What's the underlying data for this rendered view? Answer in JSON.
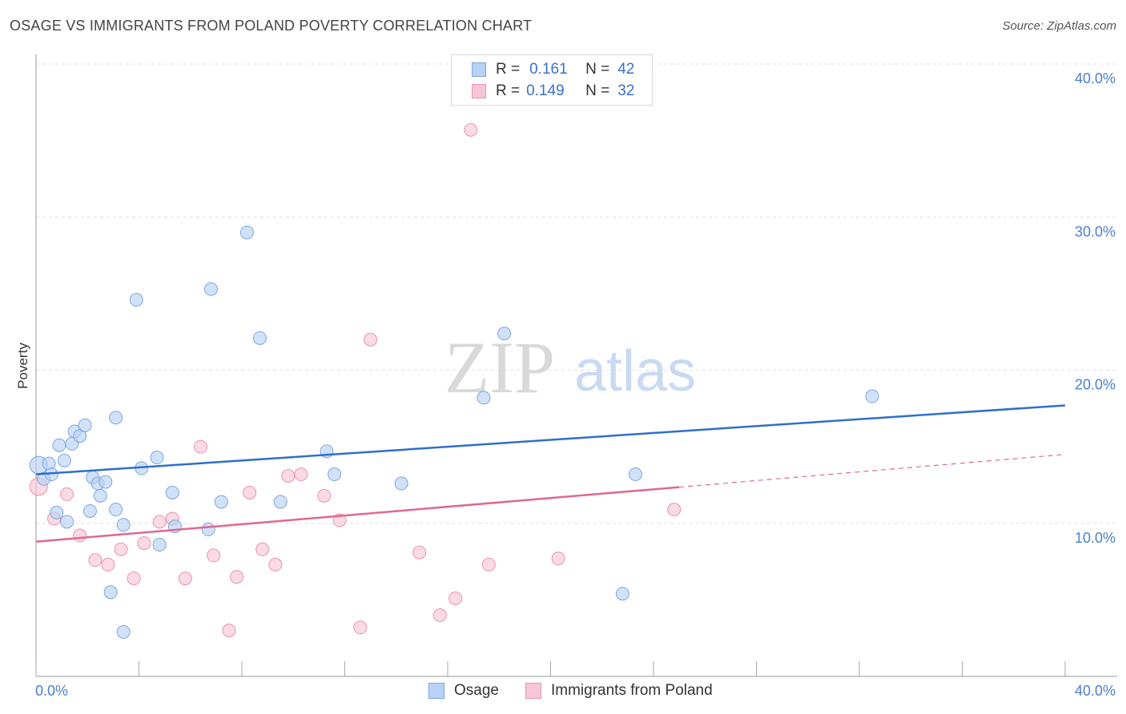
{
  "header": {
    "title": "OSAGE VS IMMIGRANTS FROM POLAND POVERTY CORRELATION CHART",
    "source": "Source: ZipAtlas.com"
  },
  "watermark": {
    "zip": "ZIP",
    "atlas": "atlas"
  },
  "legend_top": {
    "rows": [
      {
        "r_label": "R =",
        "r_value": "0.161",
        "n_label": "N =",
        "n_value": "42"
      },
      {
        "r_label": "R =",
        "r_value": "0.149",
        "n_label": "N =",
        "n_value": "32"
      }
    ]
  },
  "legend_bottom": {
    "items": [
      {
        "label": "Osage"
      },
      {
        "label": "Immigrants from Poland"
      }
    ]
  },
  "colors": {
    "osage_fill": "#b8d2f5",
    "osage_stroke": "#7aa6e0",
    "osage_line": "#2d6fcc",
    "poland_fill": "#f8c6d5",
    "poland_stroke": "#e993ae",
    "poland_line": "#e06790",
    "tick_text": "#4a7fd1",
    "grid": "#e0e0e0"
  },
  "chart_data": {
    "type": "scatter",
    "title": "OSAGE VS IMMIGRANTS FROM POLAND POVERTY CORRELATION CHART",
    "xlabel": "",
    "ylabel": "Poverty",
    "xlim": [
      0,
      40
    ],
    "ylim": [
      0,
      40
    ],
    "x_tick_labels": [
      "0.0%",
      "40.0%"
    ],
    "y_ticks": [
      10,
      20,
      30,
      40
    ],
    "y_tick_labels": [
      "10.0%",
      "20.0%",
      "30.0%",
      "40.0%"
    ],
    "grid": true,
    "legend_placement": "top-center",
    "series": [
      {
        "name": "Osage",
        "r": 0.161,
        "n": 42,
        "points": [
          [
            0.1,
            13.8
          ],
          [
            0.3,
            12.9
          ],
          [
            0.5,
            13.9
          ],
          [
            0.6,
            13.2
          ],
          [
            0.8,
            10.7
          ],
          [
            0.9,
            15.1
          ],
          [
            1.1,
            14.1
          ],
          [
            1.2,
            10.1
          ],
          [
            1.4,
            15.2
          ],
          [
            1.5,
            16.0
          ],
          [
            1.7,
            15.7
          ],
          [
            1.9,
            16.4
          ],
          [
            2.1,
            10.8
          ],
          [
            2.2,
            13.0
          ],
          [
            2.4,
            12.6
          ],
          [
            2.5,
            11.8
          ],
          [
            2.7,
            12.7
          ],
          [
            2.9,
            5.5
          ],
          [
            3.1,
            10.9
          ],
          [
            3.1,
            16.9
          ],
          [
            3.4,
            9.9
          ],
          [
            3.4,
            2.9
          ],
          [
            3.9,
            24.6
          ],
          [
            4.1,
            13.6
          ],
          [
            4.7,
            14.3
          ],
          [
            4.8,
            8.6
          ],
          [
            5.3,
            12.0
          ],
          [
            5.4,
            9.8
          ],
          [
            6.7,
            9.6
          ],
          [
            6.8,
            25.3
          ],
          [
            7.2,
            11.4
          ],
          [
            8.2,
            29.0
          ],
          [
            8.7,
            22.1
          ],
          [
            9.5,
            11.4
          ],
          [
            11.3,
            14.7
          ],
          [
            11.6,
            13.2
          ],
          [
            14.2,
            12.6
          ],
          [
            17.4,
            18.2
          ],
          [
            18.2,
            22.4
          ],
          [
            22.8,
            5.4
          ],
          [
            23.3,
            13.2
          ],
          [
            32.5,
            18.3
          ]
        ],
        "trend": {
          "x": [
            0,
            40
          ],
          "y": [
            13.2,
            17.7
          ]
        }
      },
      {
        "name": "Immigrants from Poland",
        "r": 0.149,
        "n": 32,
        "points": [
          [
            0.1,
            12.4
          ],
          [
            0.7,
            10.3
          ],
          [
            1.2,
            11.9
          ],
          [
            1.7,
            9.2
          ],
          [
            2.3,
            7.6
          ],
          [
            2.8,
            7.3
          ],
          [
            3.3,
            8.3
          ],
          [
            3.8,
            6.4
          ],
          [
            4.2,
            8.7
          ],
          [
            4.8,
            10.1
          ],
          [
            5.3,
            10.3
          ],
          [
            5.8,
            6.4
          ],
          [
            6.4,
            15.0
          ],
          [
            6.9,
            7.9
          ],
          [
            7.5,
            3.0
          ],
          [
            7.8,
            6.5
          ],
          [
            8.3,
            12.0
          ],
          [
            8.8,
            8.3
          ],
          [
            9.3,
            7.3
          ],
          [
            9.8,
            13.1
          ],
          [
            10.3,
            13.2
          ],
          [
            11.2,
            11.8
          ],
          [
            11.8,
            10.2
          ],
          [
            12.6,
            3.2
          ],
          [
            13.0,
            22.0
          ],
          [
            14.9,
            8.1
          ],
          [
            15.7,
            4.0
          ],
          [
            16.3,
            5.1
          ],
          [
            16.9,
            35.7
          ],
          [
            17.6,
            7.3
          ],
          [
            20.3,
            7.7
          ],
          [
            24.8,
            10.9
          ]
        ],
        "trend": {
          "x": [
            0,
            40
          ],
          "y": [
            8.8,
            14.5
          ],
          "solid_until_x": 25
        }
      }
    ]
  }
}
